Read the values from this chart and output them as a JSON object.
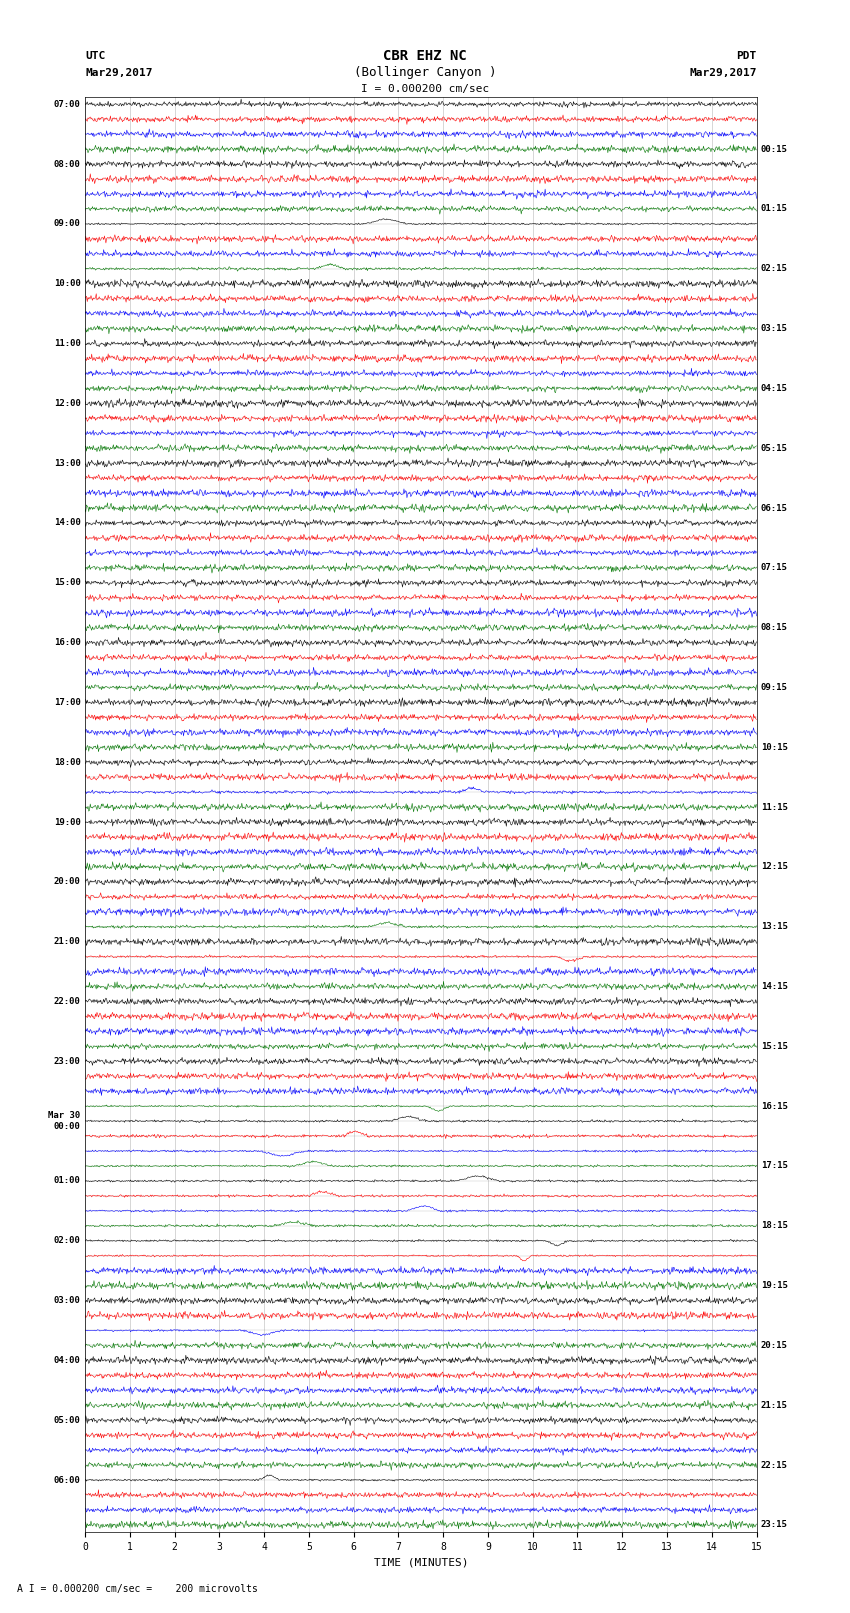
{
  "title_line1": "CBR EHZ NC",
  "title_line2": "(Bollinger Canyon )",
  "scale_label": "I = 0.000200 cm/sec",
  "bottom_label": "A I = 0.000200 cm/sec =    200 microvolts",
  "xlabel": "TIME (MINUTES)",
  "utc_label": "UTC",
  "utc_date": "Mar29,2017",
  "pdt_label": "PDT",
  "pdt_date": "Mar29,2017",
  "bg_color": "#ffffff",
  "trace_colors": [
    "#000000",
    "#ff0000",
    "#0000ff",
    "#007700"
  ],
  "left_times": [
    "07:00",
    "08:00",
    "09:00",
    "10:00",
    "11:00",
    "12:00",
    "13:00",
    "14:00",
    "15:00",
    "16:00",
    "17:00",
    "18:00",
    "19:00",
    "20:00",
    "21:00",
    "22:00",
    "23:00",
    "Mar 30\n00:00",
    "01:00",
    "02:00",
    "03:00",
    "04:00",
    "05:00",
    "06:00"
  ],
  "right_times": [
    "00:15",
    "01:15",
    "02:15",
    "03:15",
    "04:15",
    "05:15",
    "06:15",
    "07:15",
    "08:15",
    "09:15",
    "10:15",
    "11:15",
    "12:15",
    "13:15",
    "14:15",
    "15:15",
    "16:15",
    "17:15",
    "18:15",
    "19:15",
    "20:15",
    "21:15",
    "22:15",
    "23:15"
  ],
  "n_rows": 24,
  "traces_per_row": 4,
  "minutes_per_row": 15,
  "xmin": 0,
  "xmax": 15,
  "xticks": [
    0,
    1,
    2,
    3,
    4,
    5,
    6,
    7,
    8,
    9,
    10,
    11,
    12,
    13,
    14,
    15
  ],
  "grid_color": "#888888",
  "figwidth": 8.5,
  "figheight": 16.13,
  "dpi": 100
}
